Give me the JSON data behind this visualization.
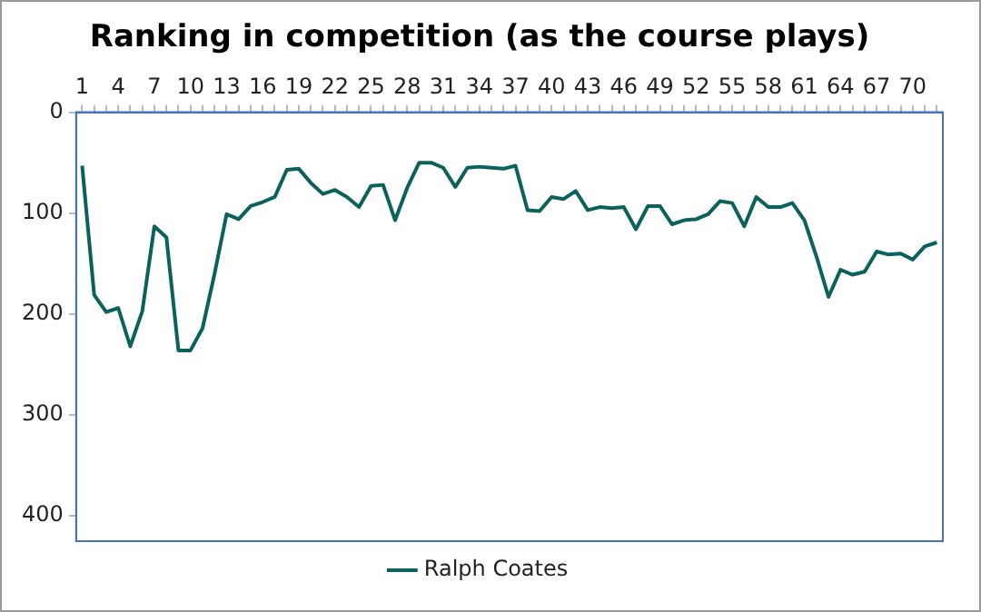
{
  "chart_data": {
    "type": "line",
    "title": "Ranking in competition (as the course plays)",
    "categories": [
      "1",
      null,
      null,
      "4",
      null,
      null,
      "7",
      null,
      null,
      "10",
      null,
      null,
      "13",
      null,
      null,
      "16",
      null,
      null,
      "19",
      null,
      null,
      "22",
      null,
      null,
      "25",
      null,
      null,
      "28",
      null,
      null,
      "31",
      null,
      null,
      "34",
      null,
      null,
      "37",
      null,
      null,
      "40",
      null,
      null,
      "43",
      null,
      null,
      "46",
      null,
      null,
      "49",
      null,
      null,
      "52",
      null,
      null,
      "55",
      null,
      null,
      "58",
      null,
      null,
      "61",
      null,
      null,
      "64",
      null,
      null,
      "67",
      null,
      null,
      "70",
      null,
      null
    ],
    "series": [
      {
        "name": "Ralph Coates",
        "color": "#0b615c",
        "values": [
          53,
          181,
          198,
          194,
          232,
          197,
          113,
          124,
          236,
          236,
          214,
          160,
          101,
          106,
          93,
          89,
          84,
          57,
          56,
          70,
          81,
          77,
          84,
          94,
          73,
          72,
          107,
          75,
          50,
          50,
          55,
          74,
          55,
          54,
          55,
          56,
          53,
          97,
          98,
          84,
          86,
          78,
          97,
          94,
          95,
          94,
          116,
          93,
          93,
          111,
          107,
          106,
          101,
          88,
          90,
          113,
          84,
          94,
          94,
          90,
          107,
          143,
          183,
          156,
          161,
          158,
          138,
          141,
          140,
          146,
          133,
          129
        ]
      }
    ],
    "ylim": [
      425,
      0
    ],
    "yticks": [
      0,
      100,
      200,
      300,
      400
    ],
    "grid": false,
    "legend": "bottom",
    "marker": "none",
    "line_style": "solid"
  }
}
